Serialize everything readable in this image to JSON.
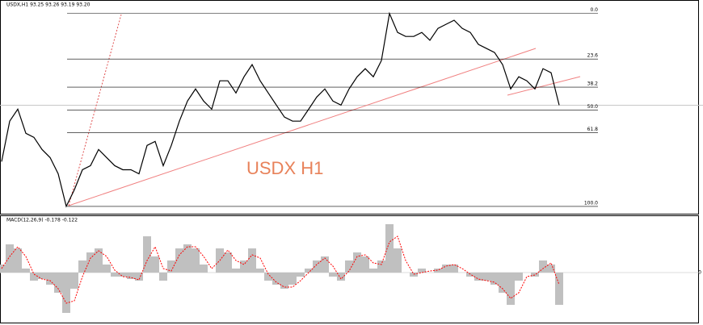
{
  "chart_data": [
    {
      "type": "line",
      "title": "USDX,H1  93.25 93.26 93.19 93.20",
      "annotation": "USDX H1",
      "color": "#000000",
      "values": [
        90.32,
        92.42,
        93.04,
        91.79,
        91.58,
        90.95,
        90.53,
        89.69,
        88.0,
        88.86,
        89.9,
        90.11,
        90.95,
        90.53,
        90.11,
        89.9,
        89.9,
        89.69,
        91.16,
        91.37,
        90.11,
        91.16,
        92.42,
        93.46,
        94.09,
        93.46,
        93.04,
        94.51,
        94.51,
        93.88,
        94.72,
        95.35,
        94.51,
        93.88,
        93.25,
        92.63,
        92.42,
        92.42,
        93.04,
        93.67,
        94.09,
        93.46,
        93.25,
        94.09,
        94.72,
        95.14,
        94.72,
        95.56,
        98.0,
        97.02,
        96.81,
        96.81,
        97.02,
        96.61,
        97.23,
        97.44,
        97.65,
        97.23,
        97.02,
        96.4,
        96.19,
        95.98,
        95.35,
        94.09,
        94.72,
        94.51,
        94.09,
        95.14,
        94.93,
        93.25
      ],
      "ylim": [
        87.62,
        98.7
      ],
      "fib_levels": [
        {
          "value": 0,
          "label": "0.0"
        },
        23.6,
        38.2,
        {
          "value": 50,
          "label": "50.0"
        },
        61.8,
        {
          "value": 100,
          "label": "100.0"
        }
      ]
    },
    {
      "type": "bar",
      "title": "MACD(12,26,9) -0.178 -0.122",
      "series": [
        {
          "color": "#c0c0c0",
          "values": [
            0.1,
            0.35,
            0.3,
            0.05,
            -0.1,
            -0.08,
            -0.15,
            -0.25,
            -0.5,
            -0.2,
            0.15,
            0.25,
            0.3,
            0.1,
            -0.05,
            -0.05,
            -0.08,
            -0.1,
            0.45,
            0.2,
            -0.1,
            0.15,
            0.3,
            0.35,
            0.3,
            0.1,
            0.0,
            0.3,
            0.25,
            0.05,
            0.15,
            0.3,
            0.05,
            -0.1,
            -0.15,
            -0.2,
            -0.15,
            -0.05,
            0.05,
            0.15,
            0.2,
            -0.05,
            -0.1,
            0.15,
            0.25,
            0.2,
            0.05,
            0.15,
            0.6,
            0.3,
            0.0,
            -0.05,
            0.05,
            0.0,
            0.05,
            0.1,
            0.1,
            0.0,
            -0.05,
            -0.1,
            -0.1,
            -0.15,
            -0.25,
            -0.4,
            -0.1,
            0.0,
            -0.05,
            0.15,
            0.1,
            -0.4
          ]
        },
        {
          "color": "#ff0000",
          "values": [
            0.05,
            0.2,
            0.32,
            0.2,
            -0.02,
            -0.08,
            -0.1,
            -0.2,
            -0.38,
            -0.35,
            -0.05,
            0.18,
            0.27,
            0.2,
            0.03,
            -0.05,
            -0.06,
            -0.09,
            0.15,
            0.32,
            0.05,
            0.02,
            0.22,
            0.32,
            0.32,
            0.2,
            0.05,
            0.15,
            0.28,
            0.15,
            0.1,
            0.22,
            0.18,
            -0.02,
            -0.12,
            -0.18,
            -0.18,
            -0.1,
            0.0,
            0.1,
            0.18,
            0.08,
            -0.08,
            0.02,
            0.2,
            0.22,
            0.12,
            0.1,
            0.38,
            0.45,
            0.15,
            -0.02,
            0.0,
            0.02,
            0.03,
            0.08,
            0.1,
            0.05,
            -0.02,
            -0.08,
            -0.1,
            -0.12,
            -0.2,
            -0.32,
            -0.25,
            -0.05,
            -0.03,
            0.05,
            0.12,
            -0.15
          ]
        }
      ],
      "ylim": [
        -0.62,
        0.7
      ],
      "yticks": [
        0
      ]
    }
  ]
}
